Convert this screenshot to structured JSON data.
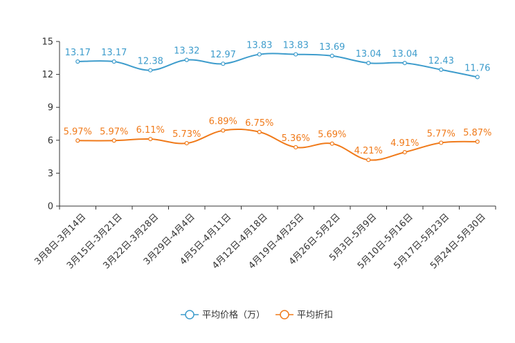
{
  "chart_data": {
    "type": "line",
    "categories": [
      "3月8日-3月14日",
      "3月15日-3月21日",
      "3月22日-3月28日",
      "3月29日-4月4日",
      "4月5日-4月11日",
      "4月12日-4月18日",
      "4月19日-4月25日",
      "4月26日-5月2日",
      "5月3日-5月9日",
      "5月10日-5月16日",
      "5月17日-5月23日",
      "5月24日-5月30日"
    ],
    "series": [
      {
        "name": "平均价格（万）",
        "color": "#3d9ccc",
        "values": [
          13.17,
          13.17,
          12.38,
          13.32,
          12.97,
          13.83,
          13.83,
          13.69,
          13.04,
          13.04,
          12.43,
          11.76
        ],
        "labels": [
          "13.17",
          "13.17",
          "12.38",
          "13.32",
          "12.97",
          "13.83",
          "13.83",
          "13.69",
          "13.04",
          "13.04",
          "12.43",
          "11.76"
        ]
      },
      {
        "name": "平均折扣",
        "color": "#f07a1a",
        "values": [
          5.97,
          5.97,
          6.11,
          5.73,
          6.89,
          6.75,
          5.36,
          5.69,
          4.21,
          4.91,
          5.77,
          5.87
        ],
        "labels": [
          "5.97%",
          "5.97%",
          "6.11%",
          "5.73%",
          "6.89%",
          "6.75%",
          "5.36%",
          "5.69%",
          "4.21%",
          "4.91%",
          "5.77%",
          "5.87%"
        ]
      }
    ],
    "yticks": [
      "0",
      "3",
      "6",
      "9",
      "12",
      "15"
    ],
    "ylim": [
      0,
      15
    ],
    "grid": false,
    "legend_position": "bottom-center"
  }
}
